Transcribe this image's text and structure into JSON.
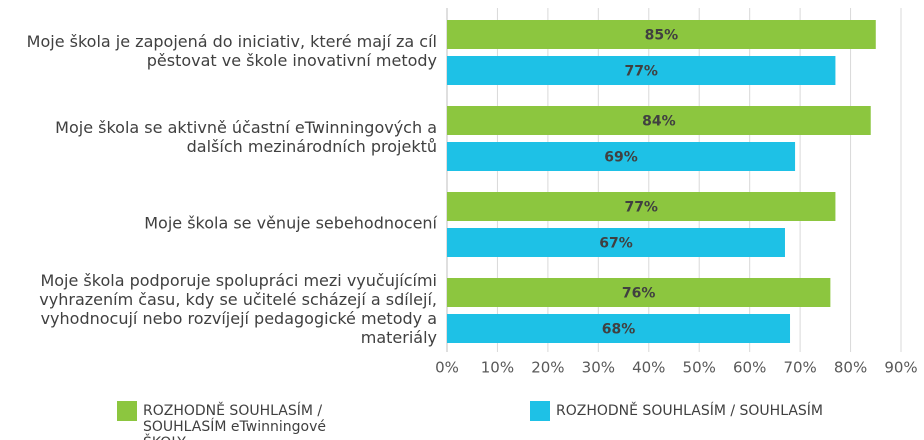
{
  "chart_data": {
    "type": "bar",
    "orientation": "horizontal",
    "categories": [
      "Moje škola je zapojená do iniciativ, které mají za cíl pěstovat ve škole inovativní metody",
      "Moje škola se aktivně účastní eTwinningových a dalších mezinárodních projektů",
      "Moje škola se věnuje sebehodnocení",
      "Moje škola podporuje spolupráci mezi vyučujícími vyhrazením času, kdy se učitelé scházejí a sdílejí, vyhodnocují nebo rozvíjejí pedagogické metody a materiály"
    ],
    "series": [
      {
        "name": "ROZHODNĚ SOUHLASÍM / SOUHLASÍM eTwinningové ŠKOLY",
        "color": "#8cc63f",
        "values": [
          85,
          84,
          77,
          76
        ],
        "value_labels": [
          "85%",
          "84%",
          "77%",
          "76%"
        ]
      },
      {
        "name": "ROZHODNĚ SOUHLASÍM / SOUHLASÍM",
        "color": "#1ec1e6",
        "values": [
          77,
          69,
          67,
          68
        ],
        "value_labels": [
          "77%",
          "69%",
          "67%",
          "68%"
        ]
      }
    ],
    "xlim": [
      0,
      90
    ],
    "xticks": [
      {
        "value": 0,
        "label": "0%"
      },
      {
        "value": 10,
        "label": "10%"
      },
      {
        "value": 20,
        "label": "20%"
      },
      {
        "value": 30,
        "label": "30%"
      },
      {
        "value": 40,
        "label": "40%"
      },
      {
        "value": 50,
        "label": "50%"
      },
      {
        "value": 60,
        "label": "60%"
      },
      {
        "value": 70,
        "label": "70%"
      },
      {
        "value": 80,
        "label": "80%"
      },
      {
        "value": 90,
        "label": "90%"
      }
    ],
    "grid": true
  }
}
